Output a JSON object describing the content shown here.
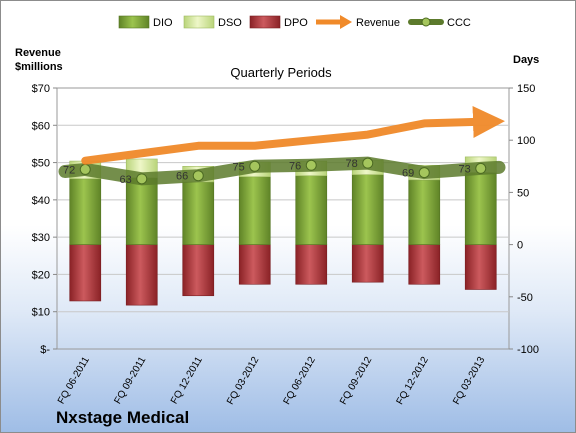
{
  "chart_data": {
    "type": "bar",
    "title": "Quarterly Periods",
    "company": "Nxstage Medical",
    "y_left_label_line1": "Revenue",
    "y_left_label_line2": "$millions",
    "y_right_label": "Days",
    "y_left_ticks": [
      "$-",
      "$10",
      "$20",
      "$30",
      "$40",
      "$50",
      "$60",
      "$70"
    ],
    "y_right_ticks": [
      "-100",
      "-50",
      "0",
      "50",
      "100",
      "150"
    ],
    "ylim_right": [
      -100,
      150
    ],
    "categories": [
      "FQ 06-2011",
      "FQ 09-2011",
      "FQ 12-2011",
      "FQ 03-2012",
      "FQ 06-2012",
      "FQ 09-2012",
      "FQ 12-2012",
      "FQ 03-2013"
    ],
    "legend_position": "top",
    "series": [
      {
        "name": "DIO",
        "type": "stacked-bar",
        "color": "#7fa435",
        "values": [
          63,
          64,
          60,
          65,
          66,
          67,
          62,
          69
        ]
      },
      {
        "name": "DSO",
        "type": "stacked-bar",
        "color": "#d9ec9c",
        "values": [
          17,
          18,
          15,
          14,
          14,
          14,
          14,
          15
        ]
      },
      {
        "name": "DPO",
        "type": "stacked-bar",
        "color": "#b03a3e",
        "values": [
          -54,
          -58,
          -49,
          -38,
          -38,
          -36,
          -38,
          -43
        ]
      },
      {
        "name": "Revenue",
        "type": "line",
        "color": "#f08a2a",
        "values": [
          50.5,
          52.5,
          54.5,
          54.5,
          56,
          57.5,
          60.5,
          61
        ]
      },
      {
        "name": "CCC",
        "type": "line",
        "color": "#6e8a3c",
        "values": [
          72,
          63,
          66,
          75,
          76,
          78,
          69,
          73
        ]
      }
    ],
    "ccc_labels": [
      "72",
      "63",
      "66",
      "75",
      "76",
      "78",
      "69",
      "73"
    ]
  }
}
